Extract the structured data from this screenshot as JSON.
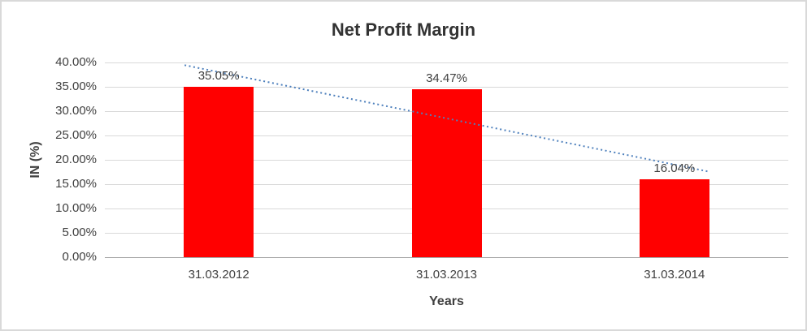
{
  "chart_data": {
    "type": "bar",
    "title": "Net Profit Margin",
    "categories": [
      "31.03.2012",
      "31.03.2013",
      "31.03.2014"
    ],
    "values": [
      35.05,
      34.47,
      16.04
    ],
    "value_labels": [
      "35.05%",
      "34.47%",
      "16.04%"
    ],
    "xlabel": "Years",
    "ylabel": "IN (%)",
    "ylim": [
      0,
      40
    ],
    "ytick_step": 5,
    "ytick_labels": [
      "0.00%",
      "5.00%",
      "10.00%",
      "15.00%",
      "20.00%",
      "25.00%",
      "30.00%",
      "35.00%",
      "40.00%"
    ],
    "bar_color": "#ff0000",
    "grid": true,
    "legend": "none",
    "trendline": {
      "show": true,
      "type": "linear",
      "style": "dotted",
      "color": "#4f81bd"
    }
  }
}
